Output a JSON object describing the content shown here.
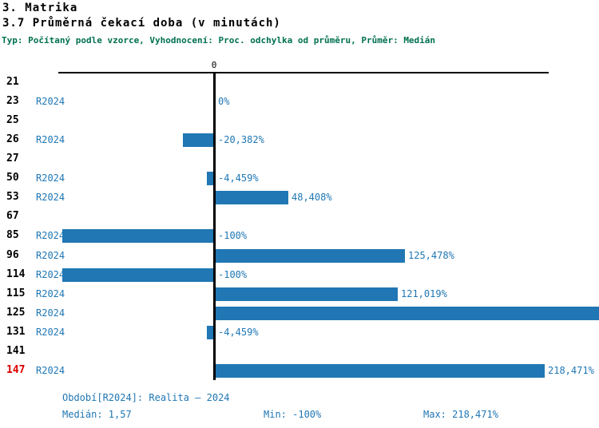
{
  "header": {
    "title1": "3. Matrika",
    "title2": "3.7 Průměrná čekací doba (v minutách)",
    "subtitle": "Typ: Počítaný podle vzorce, Vyhodnocení: Proc. odchylka od průměru, Průměr: Medián"
  },
  "axis": {
    "zero_tick_label": "0"
  },
  "colors": {
    "bar": "#2077b4",
    "blue_text": "#1f77b4",
    "highlight_red": "#dd0000",
    "subtitle_green": "#007050",
    "axis_black": "#000000"
  },
  "chart_data": {
    "type": "bar",
    "orientation": "horizontal",
    "title": "3.7 Průměrná čekací doba (v minutách)",
    "xlabel": "",
    "ylabel": "",
    "unit": "%",
    "xlim": [
      -103,
      256
    ],
    "series_label": "R2024",
    "grid": false,
    "rows": [
      {
        "id": "21",
        "series": null,
        "value": null,
        "label": null,
        "clipped": false,
        "highlight": false
      },
      {
        "id": "23",
        "series": "R2024",
        "value": 0,
        "label": "0%",
        "clipped": false,
        "highlight": false
      },
      {
        "id": "25",
        "series": null,
        "value": null,
        "label": null,
        "clipped": false,
        "highlight": false
      },
      {
        "id": "26",
        "series": "R2024",
        "value": -20.382,
        "label": "-20,382%",
        "clipped": false,
        "highlight": false
      },
      {
        "id": "27",
        "series": null,
        "value": null,
        "label": null,
        "clipped": false,
        "highlight": false
      },
      {
        "id": "50",
        "series": "R2024",
        "value": -4.459,
        "label": "-4,459%",
        "clipped": false,
        "highlight": false
      },
      {
        "id": "53",
        "series": "R2024",
        "value": 48.408,
        "label": "48,408%",
        "clipped": false,
        "highlight": false
      },
      {
        "id": "67",
        "series": null,
        "value": null,
        "label": null,
        "clipped": false,
        "highlight": false
      },
      {
        "id": "85",
        "series": "R2024",
        "value": -100,
        "label": "-100%",
        "clipped": false,
        "highlight": false
      },
      {
        "id": "96",
        "series": "R2024",
        "value": 125.478,
        "label": "125,478%",
        "clipped": false,
        "highlight": false
      },
      {
        "id": "114",
        "series": "R2024",
        "value": -100,
        "label": "-100%",
        "clipped": false,
        "highlight": false
      },
      {
        "id": "115",
        "series": "R2024",
        "value": 121.019,
        "label": "121,019%",
        "clipped": false,
        "highlight": false
      },
      {
        "id": "125",
        "series": "R2024",
        "value": 255.6,
        "label": null,
        "clipped": true,
        "highlight": false
      },
      {
        "id": "131",
        "series": "R2024",
        "value": -4.459,
        "label": "-4,459%",
        "clipped": false,
        "highlight": false
      },
      {
        "id": "141",
        "series": null,
        "value": null,
        "label": null,
        "clipped": false,
        "highlight": false
      },
      {
        "id": "147",
        "series": "R2024",
        "value": 218.471,
        "label": "218,471%",
        "clipped": false,
        "highlight": true
      }
    ]
  },
  "footer": {
    "period": "Období[R2024]: Realita – 2024",
    "median": "Medián: 1,57",
    "min": "Min: -100%",
    "max": "Max: 218,471%"
  }
}
